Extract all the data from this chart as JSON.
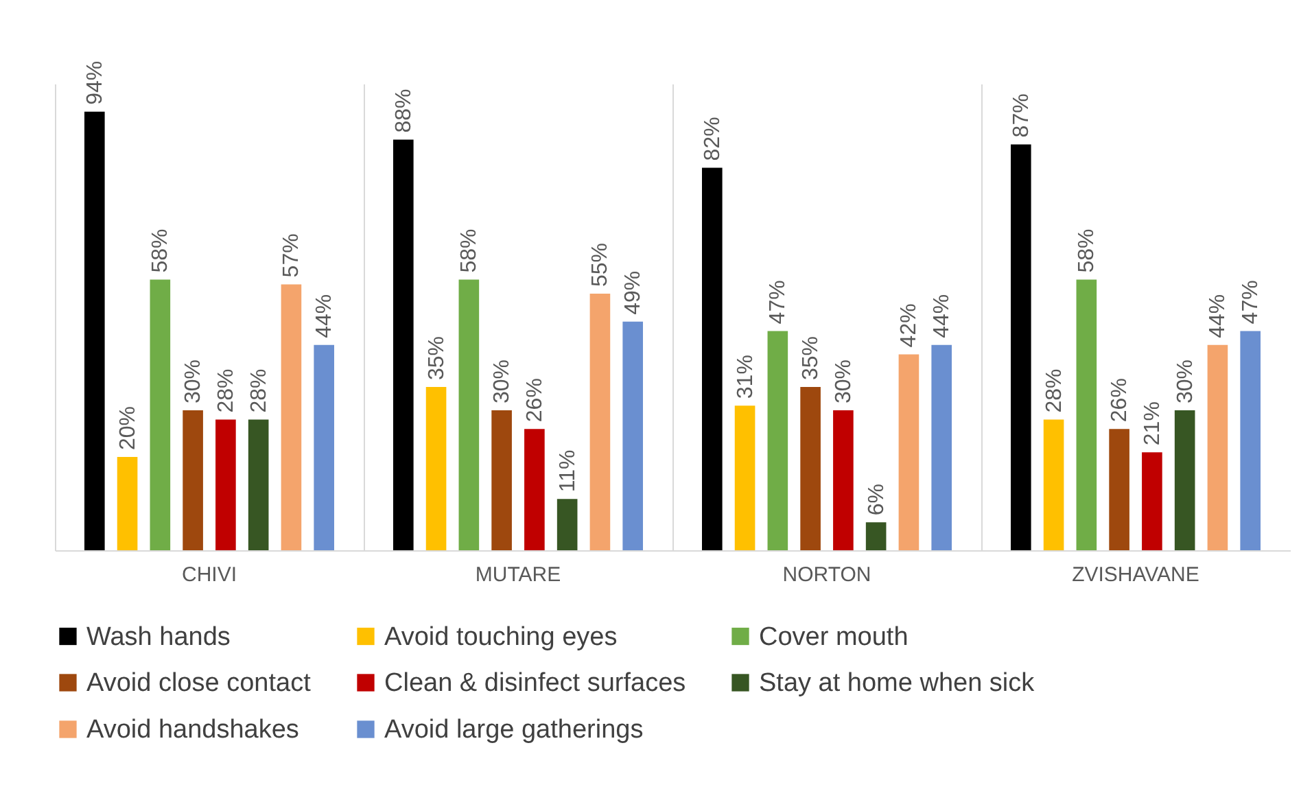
{
  "chart_data": {
    "type": "bar",
    "categories": [
      "CHIVI",
      "MUTARE",
      "NORTON",
      "ZVISHAVANE"
    ],
    "series": [
      {
        "name": "Wash hands",
        "color": "#000000",
        "values": [
          94,
          88,
          82,
          87
        ],
        "value_labels": [
          "94%",
          "88%",
          "82%",
          "87%"
        ]
      },
      {
        "name": "Avoid touching eyes",
        "color": "#ffc000",
        "values": [
          20,
          35,
          31,
          28
        ],
        "value_labels": [
          "20%",
          "35%",
          "31%",
          "28%"
        ]
      },
      {
        "name": "Cover mouth",
        "color": "#70ad47",
        "values": [
          58,
          58,
          47,
          58
        ],
        "value_labels": [
          "58%",
          "58%",
          "47%",
          "58%"
        ]
      },
      {
        "name": "Avoid close contact",
        "color": "#9e480e",
        "values": [
          30,
          30,
          35,
          26
        ],
        "value_labels": [
          "30%",
          "30%",
          "35%",
          "26%"
        ]
      },
      {
        "name": "Clean & disinfect surfaces",
        "color": "#c00000",
        "values": [
          28,
          26,
          30,
          21
        ],
        "value_labels": [
          "28%",
          "26%",
          "30%",
          "21%"
        ]
      },
      {
        "name": "Stay at home when sick",
        "color": "#375623",
        "values": [
          28,
          11,
          6,
          30
        ],
        "value_labels": [
          "28%",
          "11%",
          "6%",
          "30%"
        ]
      },
      {
        "name": "Avoid handshakes",
        "color": "#f4a46c",
        "values": [
          57,
          55,
          42,
          44
        ],
        "value_labels": [
          "57%",
          "55%",
          "42%",
          "44%"
        ]
      },
      {
        "name": "Avoid large gatherings",
        "color": "#6a8fd0",
        "values": [
          44,
          49,
          44,
          47
        ],
        "value_labels": [
          "44%",
          "49%",
          "44%",
          "47%"
        ]
      }
    ],
    "ylim": [
      0,
      100
    ],
    "grid": "x",
    "legend": "bottom",
    "tick_labels": "x"
  }
}
